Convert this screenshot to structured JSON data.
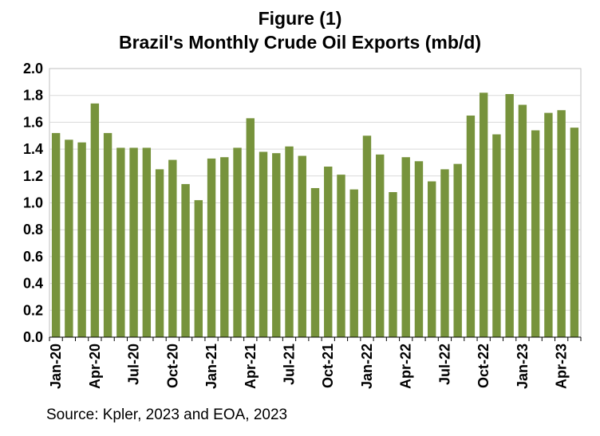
{
  "chart_data": {
    "type": "bar",
    "title": "Figure (1)",
    "subtitle": "Brazil's Monthly Crude Oil Exports (mb/d)",
    "xlabel": "",
    "ylabel": "",
    "ylim": [
      0,
      2.0
    ],
    "yticks": [
      "0.0",
      "0.2",
      "0.4",
      "0.6",
      "0.8",
      "1.0",
      "1.2",
      "1.4",
      "1.6",
      "1.8",
      "2.0"
    ],
    "grid": true,
    "bar_color": "#77933C",
    "categories": [
      "Jan-20",
      "Feb-20",
      "Mar-20",
      "Apr-20",
      "May-20",
      "Jun-20",
      "Jul-20",
      "Aug-20",
      "Sep-20",
      "Oct-20",
      "Nov-20",
      "Dec-20",
      "Jan-21",
      "Feb-21",
      "Mar-21",
      "Apr-21",
      "May-21",
      "Jun-21",
      "Jul-21",
      "Aug-21",
      "Sep-21",
      "Oct-21",
      "Nov-21",
      "Dec-21",
      "Jan-22",
      "Feb-22",
      "Mar-22",
      "Apr-22",
      "May-22",
      "Jun-22",
      "Jul-22",
      "Aug-22",
      "Sep-22",
      "Oct-22",
      "Nov-22",
      "Dec-22",
      "Jan-23",
      "Feb-23",
      "Mar-23",
      "Apr-23",
      "May-23"
    ],
    "values": [
      1.52,
      1.47,
      1.45,
      1.74,
      1.52,
      1.41,
      1.41,
      1.41,
      1.25,
      1.32,
      1.14,
      1.02,
      1.33,
      1.34,
      1.41,
      1.63,
      1.38,
      1.37,
      1.42,
      1.35,
      1.11,
      1.27,
      1.21,
      1.1,
      1.5,
      1.36,
      1.08,
      1.34,
      1.31,
      1.16,
      1.25,
      1.29,
      1.65,
      1.82,
      1.51,
      1.81,
      1.73,
      1.54,
      1.67,
      1.69,
      1.56
    ],
    "shown_xticks": [
      "Jan-20",
      "Apr-20",
      "Jul-20",
      "Oct-20",
      "Jan-21",
      "Apr-21",
      "Jul-21",
      "Oct-21",
      "Jan-22",
      "Apr-22",
      "Jul-22",
      "Oct-22",
      "Jan-23",
      "Apr-23"
    ]
  },
  "source": "Source: Kpler, 2023 and EOA, 2023"
}
